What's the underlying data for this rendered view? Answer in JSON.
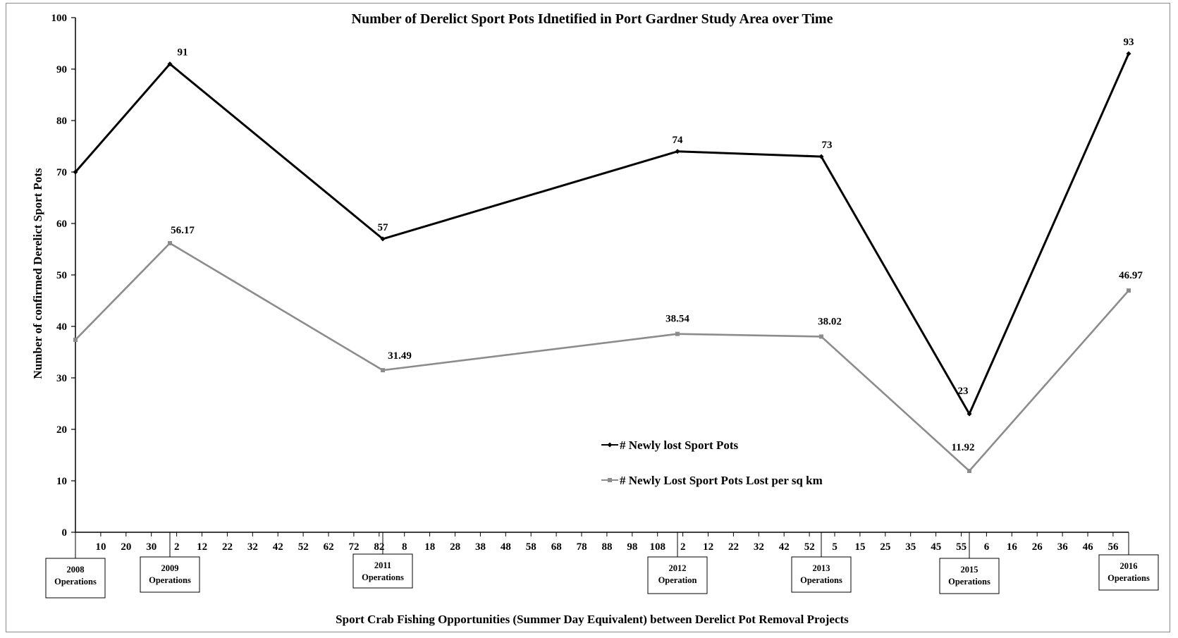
{
  "chart_data": {
    "type": "line",
    "title": "Number of Derelict Sport Pots Idnetified in Port Gardner Study Area over Time",
    "xlabel": "Sport Crab Fishing Opportunities (Summer Day Equivalent) between Derelict Pot Removal Projects",
    "ylabel": "Number of confirmed Derelict Sport Pots",
    "ylim": [
      0,
      100
    ],
    "yticks": [
      "0",
      "10",
      "20",
      "30",
      "40",
      "50",
      "60",
      "70",
      "80",
      "90",
      "100"
    ],
    "xticks": [
      "10",
      "20",
      "30",
      "2",
      "12",
      "22",
      "32",
      "42",
      "52",
      "62",
      "72",
      "82",
      "8",
      "18",
      "28",
      "38",
      "48",
      "58",
      "68",
      "78",
      "88",
      "98",
      "108",
      "2",
      "12",
      "22",
      "32",
      "42",
      "52",
      "5",
      "15",
      "25",
      "35",
      "45",
      "55",
      "6",
      "16",
      "26",
      "36",
      "46",
      "56"
    ],
    "operations": [
      {
        "line1": "2008",
        "line2": "Operations"
      },
      {
        "line1": "2009",
        "line2": "Operations"
      },
      {
        "line1": "2011",
        "line2": "Operations"
      },
      {
        "line1": "2012",
        "line2": "Operation"
      },
      {
        "line1": "2013",
        "line2": "Operations"
      },
      {
        "line1": "2015",
        "line2": "Operations"
      },
      {
        "line1": "2016",
        "line2": "Operations"
      }
    ],
    "series": [
      {
        "name": "# Newly lost Sport Pots",
        "color": "#000000",
        "values": [
          70,
          91,
          57,
          74,
          73,
          23,
          93
        ],
        "labels": [
          "",
          "91",
          "57",
          "74",
          "73",
          "23",
          "93"
        ]
      },
      {
        "name": "# Newly Lost Sport Pots Lost per sq km",
        "color": "#8c8c8c",
        "values": [
          37.4,
          56.17,
          31.49,
          38.54,
          38.02,
          11.92,
          46.97
        ],
        "labels": [
          "",
          "56.17",
          "31.49",
          "38.54",
          "38.02",
          "11.92",
          "46.97"
        ]
      }
    ],
    "grid": false,
    "legend": "center-right"
  }
}
